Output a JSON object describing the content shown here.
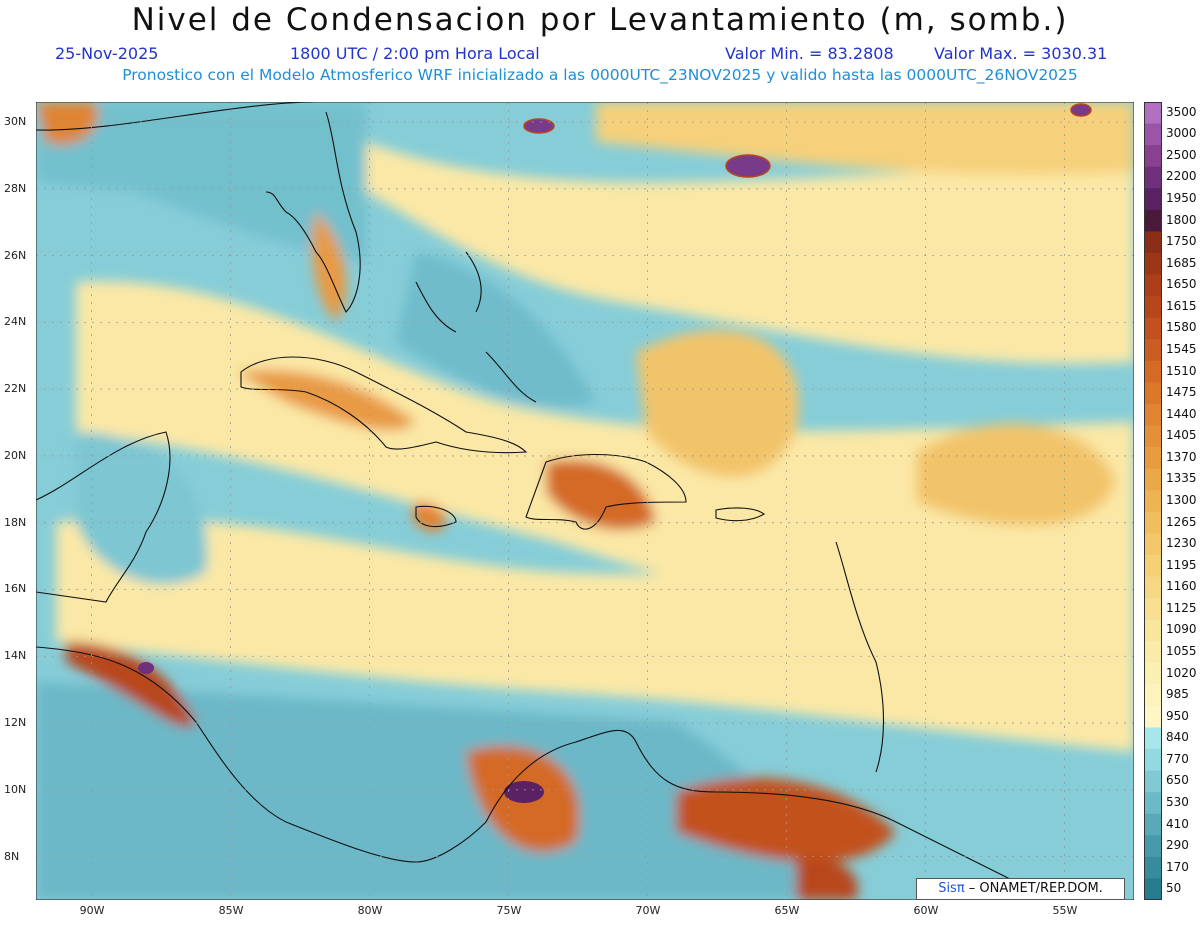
{
  "header": {
    "title": "Nivel de Condensacion por Levantamiento (m, somb.)",
    "date": "25-Nov-2025",
    "time": "1800 UTC / 2:00 pm Hora Local",
    "valmin": "Valor Min. = 83.2808",
    "valmax": "Valor Max. = 3030.31",
    "forecast": "Pronostico con el Modelo Atmosferico WRF inicializado a las 0000UTC_23NOV2025 y valido hasta las  0000UTC_26NOV2025"
  },
  "map": {
    "lon_labels": [
      "90W",
      "85W",
      "80W",
      "75W",
      "70W",
      "65W",
      "60W",
      "55W"
    ],
    "lat_labels": [
      "30N",
      "28N",
      "26N",
      "24N",
      "22N",
      "20N",
      "18N",
      "16N",
      "14N",
      "12N",
      "10N",
      "8N"
    ],
    "lon_range": [
      -92,
      -52.5
    ],
    "lat_range": [
      6.7,
      30.6
    ]
  },
  "colorbar": {
    "labels": [
      "3500",
      "3000",
      "2500",
      "2200",
      "1950",
      "1800",
      "1750",
      "1685",
      "1650",
      "1615",
      "1580",
      "1545",
      "1510",
      "1475",
      "1440",
      "1405",
      "1370",
      "1335",
      "1300",
      "1265",
      "1230",
      "1195",
      "1160",
      "1125",
      "1090",
      "1055",
      "1020",
      "985",
      "950",
      "840",
      "770",
      "650",
      "530",
      "410",
      "290",
      "170",
      "50"
    ],
    "colors": [
      "#b070c0",
      "#9a55a8",
      "#87418f",
      "#6f2f7a",
      "#5a2263",
      "#4a1a3a",
      "#8a2e18",
      "#9c3618",
      "#ad3e1a",
      "#b8461c",
      "#c2511f",
      "#cc5d22",
      "#d46a26",
      "#db772b",
      "#e08431",
      "#e49038",
      "#e89c40",
      "#eba849",
      "#eeb353",
      "#f0be5e",
      "#f2c86a",
      "#f4d077",
      "#f6d884",
      "#f8df91",
      "#f9e69e",
      "#fbebaa",
      "#fcefb4",
      "#fdf3bd",
      "#fef6c6",
      "#a8e6ee",
      "#94d8e2",
      "#80c9d5",
      "#6db9c7",
      "#5aa9b9",
      "#489aab",
      "#378b9d",
      "#277b8e"
    ]
  },
  "credit": {
    "sis": "Sisπ",
    "rest": " – ONAMET/REP.DOM."
  }
}
